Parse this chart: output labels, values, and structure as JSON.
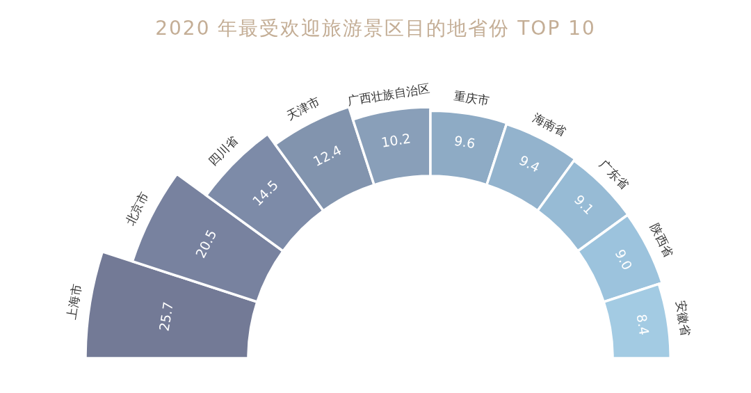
{
  "chart_data": {
    "type": "other",
    "title": "2020 年最受欢迎旅游景区目的地省份 TOP 10",
    "categories": [
      "上海市",
      "北京市",
      "四川省",
      "天津市",
      "广西壮族自治区",
      "重庆市",
      "海南省",
      "广东省",
      "陕西省",
      "安徽省"
    ],
    "values": [
      25.7,
      20.5,
      14.5,
      12.4,
      10.2,
      9.6,
      9.4,
      9.1,
      9.0,
      8.4
    ],
    "value_labels": [
      "25.7",
      "20.5",
      "14.5",
      "12.4",
      "10.2",
      "9.6",
      "9.4",
      "9.1",
      "9.0",
      "8.4"
    ],
    "colors": [
      "#737a96",
      "#78829f",
      "#7d8ba8",
      "#8294ae",
      "#899fb9",
      "#8eabc5",
      "#93b3cd",
      "#97bbd5",
      "#9cc3dd",
      "#a3cbe3"
    ]
  }
}
